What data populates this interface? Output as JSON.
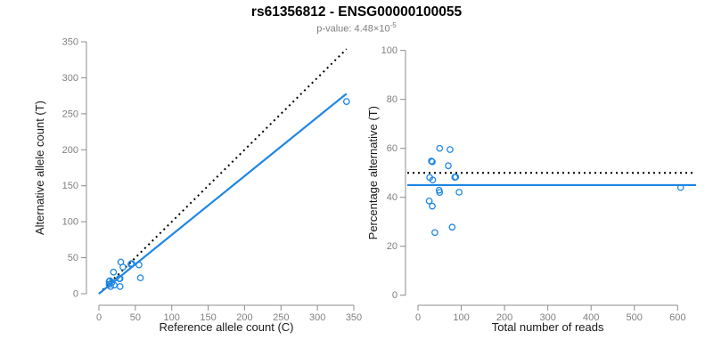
{
  "header": {
    "title": "rs61356812 - ENSG00000100055",
    "pvalue_prefix": "p-value: ",
    "pvalue_base": "4.48×10",
    "pvalue_exponent": "-5"
  },
  "colors": {
    "accent_blue": "#1E87E5",
    "line_black": "#000000",
    "axis_gray": "#8c8c8c",
    "tick_label_gray": "#808080",
    "axis_label_black": "#1a1a1a",
    "subtitle_gray": "#7f7f7f",
    "background": "#ffffff"
  },
  "chart_data": [
    {
      "type": "scatter",
      "panel": "left",
      "title": "",
      "xlabel": "Reference allele count (C)",
      "ylabel": "Alternative allele count (T)",
      "xlim": [
        0,
        350
      ],
      "ylim": [
        0,
        350
      ],
      "xticks": [
        0,
        50,
        100,
        150,
        200,
        250,
        300,
        350
      ],
      "yticks": [
        0,
        50,
        100,
        150,
        200,
        250,
        300,
        350
      ],
      "grid": false,
      "legend": "none",
      "marker": "open-circle",
      "points": [
        [
          340,
          267
        ],
        [
          30,
          44
        ],
        [
          20,
          30
        ],
        [
          33,
          37
        ],
        [
          15,
          18
        ],
        [
          14,
          17
        ],
        [
          45,
          42
        ],
        [
          44,
          41
        ],
        [
          14,
          13
        ],
        [
          18,
          16
        ],
        [
          28,
          21
        ],
        [
          29,
          21
        ],
        [
          55,
          40
        ],
        [
          16,
          10
        ],
        [
          21,
          12
        ],
        [
          29,
          10
        ],
        [
          57,
          22
        ]
      ],
      "lines": [
        {
          "name": "identity-line",
          "kind": "segment",
          "style": "dotted",
          "color": "#000000",
          "x1": 0,
          "y1": 0,
          "x2": 340,
          "y2": 340
        },
        {
          "name": "fit-line",
          "kind": "segment",
          "style": "solid",
          "color": "#1E87E5",
          "x1": 0,
          "y1": 0,
          "x2": 340,
          "y2": 278
        }
      ]
    },
    {
      "type": "scatter",
      "panel": "right",
      "title": "",
      "xlabel": "Total number of reads",
      "ylabel": "Percentage alternative (T)",
      "xlim": [
        0,
        620
      ],
      "ylim": [
        0,
        100
      ],
      "xticks": [
        0,
        100,
        200,
        300,
        400,
        500,
        600
      ],
      "yticks": [
        0,
        20,
        40,
        60,
        80,
        100
      ],
      "grid": false,
      "legend": "none",
      "marker": "open-circle",
      "points": [
        [
          607,
          44
        ],
        [
          74,
          59.5
        ],
        [
          50,
          60
        ],
        [
          70,
          52.9
        ],
        [
          33,
          54.5
        ],
        [
          31,
          54.8
        ],
        [
          87,
          48.3
        ],
        [
          85,
          48.2
        ],
        [
          27,
          48.1
        ],
        [
          34,
          47.1
        ],
        [
          49,
          42.9
        ],
        [
          50,
          42
        ],
        [
          95,
          42.1
        ],
        [
          26,
          38.5
        ],
        [
          33,
          36.4
        ],
        [
          39,
          25.6
        ],
        [
          79,
          27.8
        ]
      ],
      "lines": [
        {
          "name": "expected-50pct-line",
          "kind": "hline",
          "style": "dotted",
          "color": "#000000",
          "y": 50
        },
        {
          "name": "fitted-pct-line",
          "kind": "hline",
          "style": "solid",
          "color": "#1E87E5",
          "y": 45
        }
      ]
    }
  ]
}
